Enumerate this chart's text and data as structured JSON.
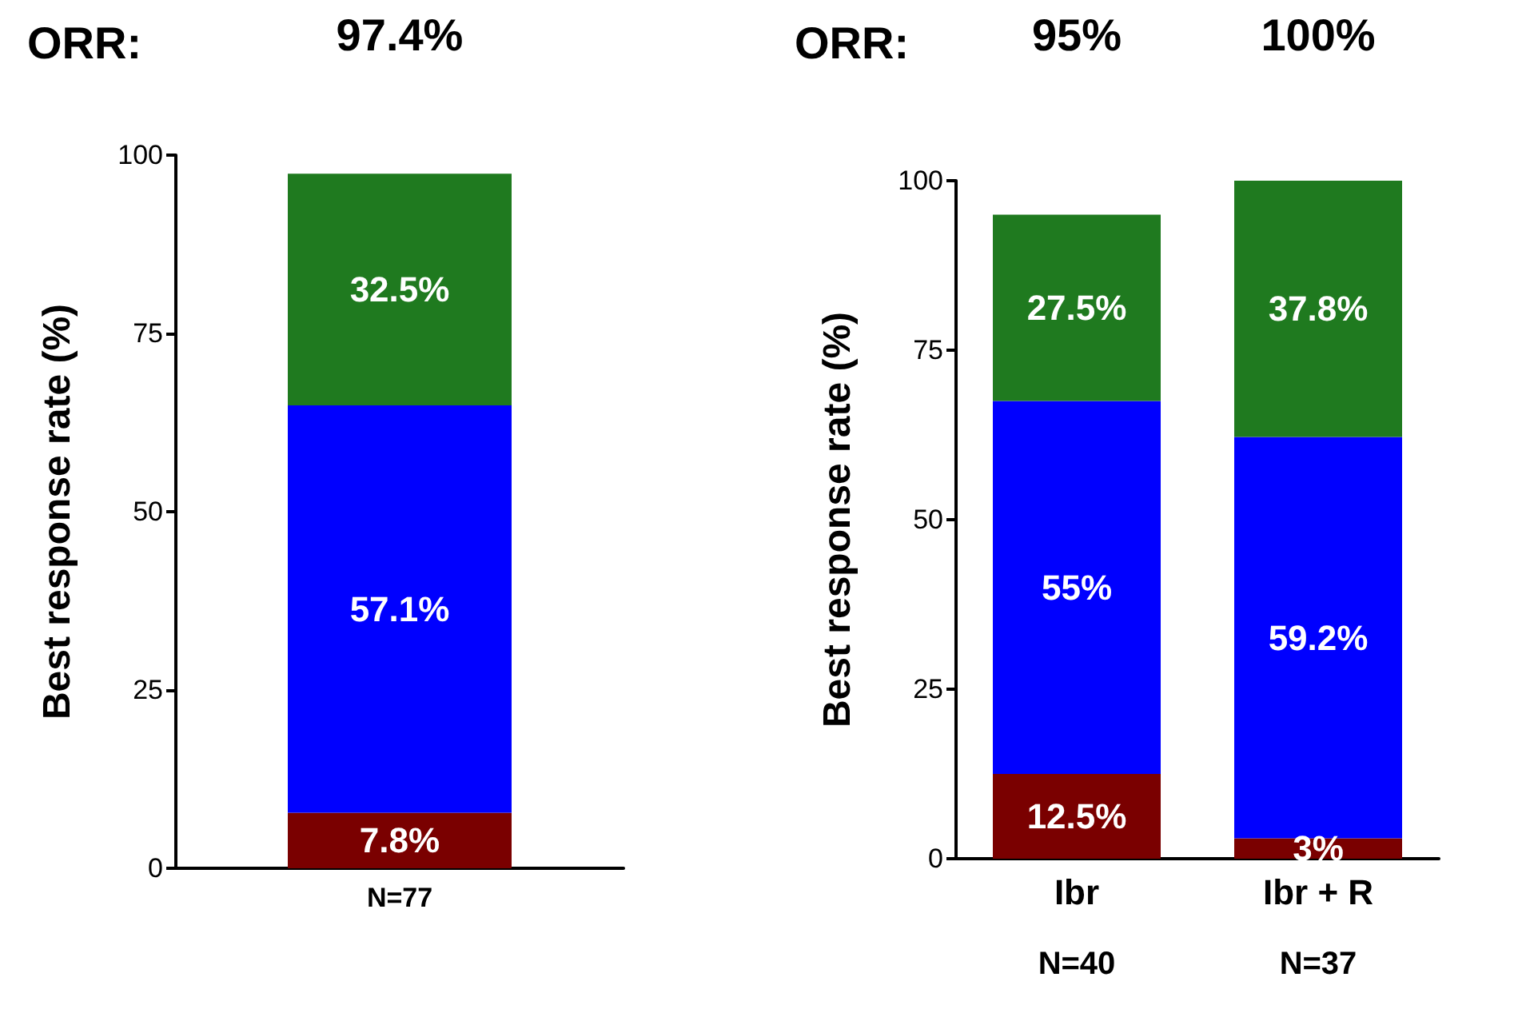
{
  "chart_data": [
    {
      "type": "bar",
      "title": "ORR:",
      "ylabel": "Best response rate (%)",
      "categories": [
        "N=77"
      ],
      "stacked": true,
      "ylim": [
        0,
        100
      ],
      "yticks": [
        0,
        25,
        50,
        75,
        100
      ],
      "grid": false,
      "series": [
        {
          "color": "#7a0000",
          "values": [
            7.8
          ],
          "value_labels": [
            "7.8%"
          ]
        },
        {
          "color": "#0000ff",
          "values": [
            57.1
          ],
          "value_labels": [
            "57.1%"
          ]
        },
        {
          "color": "#1f7a1f",
          "values": [
            32.5
          ],
          "value_labels": [
            "32.5%"
          ]
        }
      ],
      "annotations": [
        "97.4%"
      ]
    },
    {
      "type": "bar",
      "title": "ORR:",
      "ylabel": "Best response rate (%)",
      "categories": [
        "Ibr",
        "Ibr + R"
      ],
      "stacked": true,
      "ylim": [
        0,
        100
      ],
      "yticks": [
        0,
        25,
        50,
        75,
        100
      ],
      "grid": false,
      "series": [
        {
          "color": "#7a0000",
          "values": [
            12.5,
            3
          ],
          "value_labels": [
            "12.5%",
            "3%"
          ]
        },
        {
          "color": "#0000ff",
          "values": [
            55,
            59.2
          ],
          "value_labels": [
            "55%",
            "59.2%"
          ]
        },
        {
          "color": "#1f7a1f",
          "values": [
            27.5,
            37.8
          ],
          "value_labels": [
            "27.5%",
            "37.8%"
          ]
        }
      ],
      "annotations": [
        "95%",
        "100%",
        "N=40",
        "N=37"
      ]
    }
  ]
}
